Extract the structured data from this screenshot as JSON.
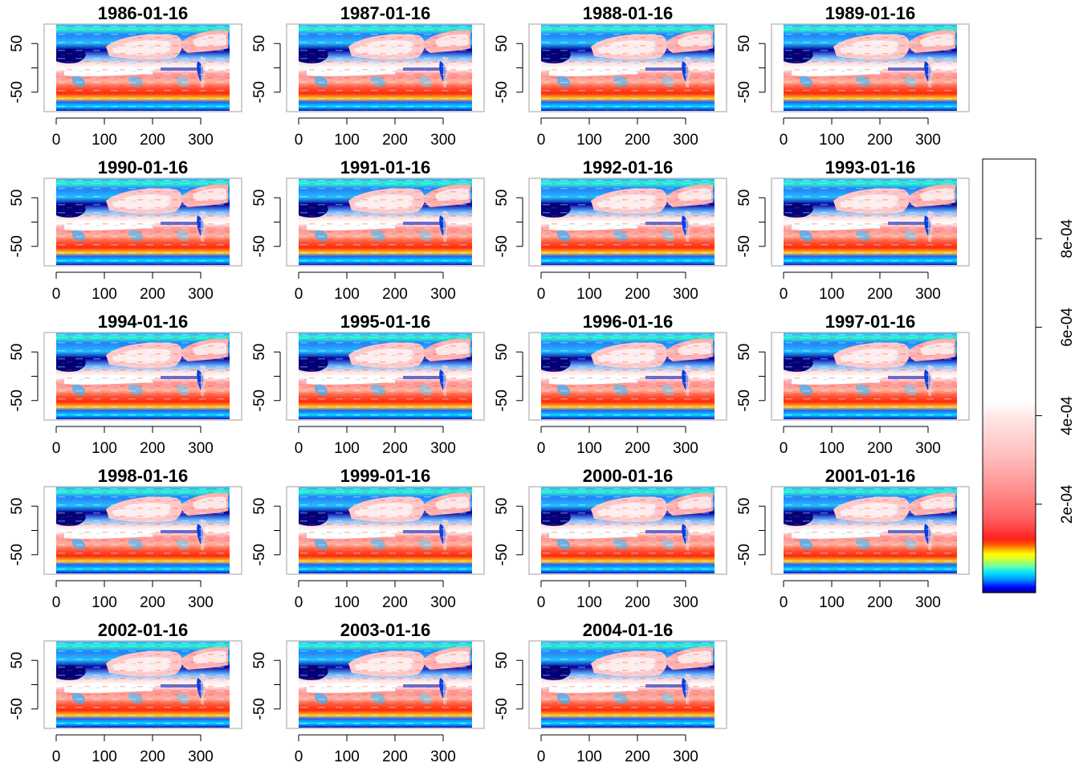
{
  "chart_data": {
    "type": "heatmap",
    "panel_titles": [
      "1986-01-16",
      "1987-01-16",
      "1988-01-16",
      "1989-01-16",
      "1990-01-16",
      "1991-01-16",
      "1992-01-16",
      "1993-01-16",
      "1994-01-16",
      "1995-01-16",
      "1996-01-16",
      "1997-01-16",
      "1998-01-16",
      "1999-01-16",
      "2000-01-16",
      "2001-01-16",
      "2002-01-16",
      "2003-01-16",
      "2004-01-16"
    ],
    "x_ticks": [
      0,
      100,
      200,
      300
    ],
    "y_ticks": [
      -50,
      0,
      50
    ],
    "y_tick_labels": [
      "-50",
      "",
      "50"
    ],
    "xlim": [
      0,
      360
    ],
    "ylim": [
      -90,
      90
    ],
    "colorbar": {
      "ticks": [
        0.0002,
        0.0004,
        0.0006,
        0.0008
      ],
      "tick_labels": [
        "2e-04",
        "4e-04",
        "6e-04",
        "8e-04"
      ],
      "range": [
        0,
        0.00098
      ],
      "colors": [
        "#00008b",
        "#0000ff",
        "#0090ff",
        "#00e0ff",
        "#60ffb0",
        "#c8ff40",
        "#ffff00",
        "#ffb000",
        "#ff5000",
        "#ff2020",
        "#ff6060",
        "#ff9090",
        "#ffc0c0",
        "#ffe4e4",
        "#ffffff"
      ]
    },
    "grid": false,
    "legend": "right"
  }
}
